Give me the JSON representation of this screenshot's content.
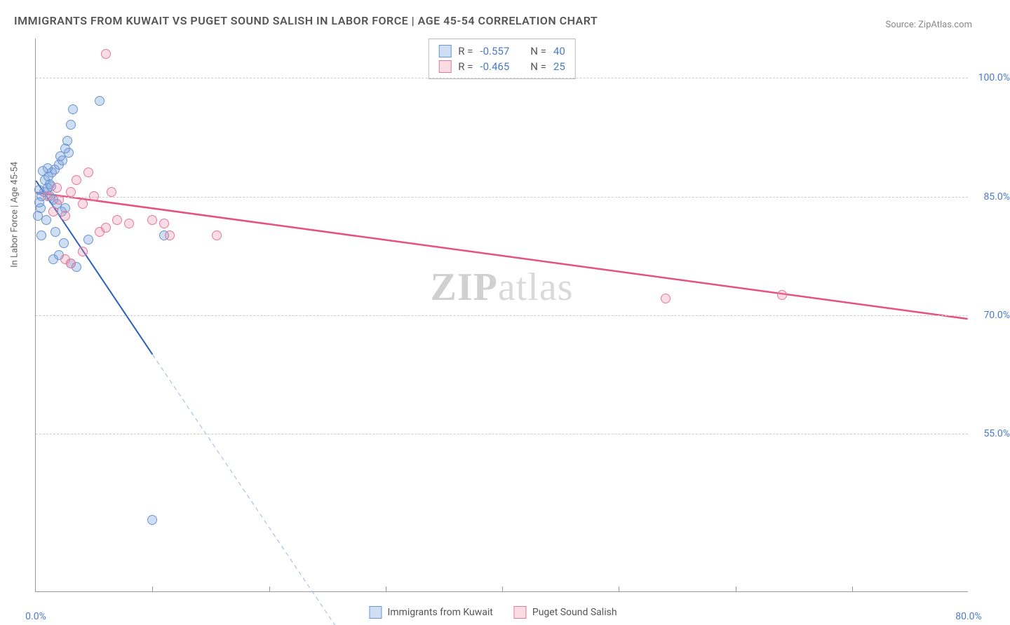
{
  "title": "IMMIGRANTS FROM KUWAIT VS PUGET SOUND SALISH IN LABOR FORCE | AGE 45-54 CORRELATION CHART",
  "source_label": "Source: ",
  "source_name": "ZipAtlas.com",
  "y_axis_title": "In Labor Force | Age 45-54",
  "watermark_bold": "ZIP",
  "watermark_light": "atlas",
  "chart": {
    "type": "scatter",
    "xlim": [
      0,
      80
    ],
    "ylim": [
      35,
      105
    ],
    "x_ticks": [
      0,
      80
    ],
    "x_tick_labels": [
      "0.0%",
      "80.0%"
    ],
    "x_minor_ticks": [
      10,
      20,
      30,
      40,
      50,
      60,
      70
    ],
    "y_gridlines": [
      55,
      70,
      85,
      100
    ],
    "y_tick_labels": [
      "55.0%",
      "70.0%",
      "85.0%",
      "100.0%"
    ],
    "background_color": "#ffffff",
    "grid_color": "#cccccc",
    "axis_color": "#999999",
    "tick_label_color": "#4a7bc8",
    "marker_radius": 7,
    "marker_stroke_width": 1.5,
    "series": [
      {
        "name": "Immigrants from Kuwait",
        "fill_color": "rgba(120,160,220,0.35)",
        "stroke_color": "#6a95d0",
        "line_color": "#2d5fb8",
        "line_width": 2,
        "dash_color": "#9ab6e0",
        "R_label": "R = ",
        "R_value": "-0.557",
        "N_label": "N = ",
        "N_value": "40",
        "trend": {
          "x1": 0,
          "y1": 87,
          "x2_solid": 10,
          "y2_solid": 65,
          "x2_dash": 26,
          "y2_dash": 30
        },
        "points": [
          [
            0.5,
            85
          ],
          [
            0.7,
            85.5
          ],
          [
            1,
            86
          ],
          [
            1.2,
            85
          ],
          [
            1.5,
            84.5
          ],
          [
            1.3,
            86.2
          ],
          [
            0.8,
            87
          ],
          [
            1.1,
            87.5
          ],
          [
            1.4,
            88
          ],
          [
            1.6,
            88.3
          ],
          [
            1,
            88.5
          ],
          [
            0.6,
            88.2
          ],
          [
            2,
            89
          ],
          [
            2.3,
            89.5
          ],
          [
            2.1,
            90
          ],
          [
            2.8,
            90.5
          ],
          [
            1.8,
            84
          ],
          [
            2.2,
            83
          ],
          [
            2.5,
            83.5
          ],
          [
            0.4,
            83.5
          ],
          [
            0.3,
            84.2
          ],
          [
            0.9,
            82
          ],
          [
            1.7,
            80.5
          ],
          [
            2.4,
            79
          ],
          [
            2,
            77.5
          ],
          [
            1.5,
            77
          ],
          [
            3,
            76.5
          ],
          [
            3.5,
            76
          ],
          [
            4.5,
            79.5
          ],
          [
            5.5,
            97
          ],
          [
            3.2,
            96
          ],
          [
            3,
            94
          ],
          [
            2.7,
            92
          ],
          [
            2.5,
            91
          ],
          [
            0.5,
            80
          ],
          [
            0.2,
            82.5
          ],
          [
            0.3,
            85.8
          ],
          [
            11,
            80
          ],
          [
            10,
            44
          ],
          [
            1.2,
            86.5
          ]
        ]
      },
      {
        "name": "Puget Sound Salish",
        "fill_color": "rgba(240,140,170,0.3)",
        "stroke_color": "#e07a9a",
        "line_color": "#e5527e",
        "line_width": 2.5,
        "R_label": "R = ",
        "R_value": "-0.465",
        "N_label": "N = ",
        "N_value": "25",
        "trend": {
          "x1": 0,
          "y1": 85.5,
          "x2_solid": 80,
          "y2_solid": 69.5
        },
        "points": [
          [
            1,
            85
          ],
          [
            2,
            84.5
          ],
          [
            3,
            85.5
          ],
          [
            4,
            84
          ],
          [
            5,
            85
          ],
          [
            1.5,
            83
          ],
          [
            2.5,
            82.5
          ],
          [
            3.5,
            87
          ],
          [
            6,
            103
          ],
          [
            4.5,
            88
          ],
          [
            6.5,
            85.5
          ],
          [
            7,
            82
          ],
          [
            8,
            81.5
          ],
          [
            5.5,
            80.5
          ],
          [
            6,
            81
          ],
          [
            4,
            78
          ],
          [
            2.5,
            77
          ],
          [
            3,
            76.5
          ],
          [
            10,
            82
          ],
          [
            11,
            81.5
          ],
          [
            11.5,
            80
          ],
          [
            15.5,
            80
          ],
          [
            54,
            72
          ],
          [
            64,
            72.5
          ],
          [
            1.8,
            86
          ]
        ]
      }
    ]
  }
}
